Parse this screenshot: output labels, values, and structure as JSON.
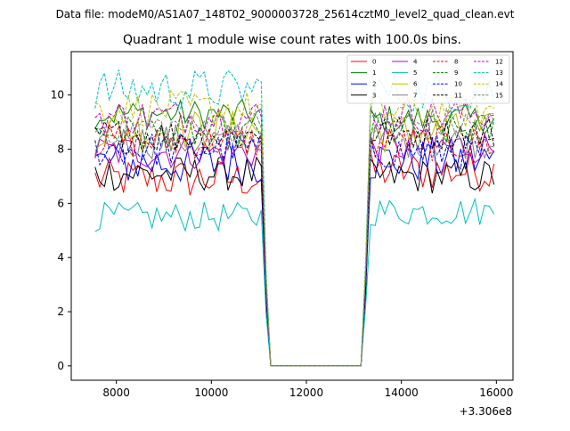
{
  "suptitle": "Data file: modeM0/AS1A07_148T02_9000003728_25614cztM0_level2_quad_clean.evt",
  "chart_data": {
    "type": "line",
    "title": "Quadrant 1 module wise count rates with 100.0s bins.",
    "xlabel": "",
    "ylabel": "",
    "x_offset_label": "+3.306e8",
    "xlim": [
      7050,
      16350
    ],
    "ylim": [
      -0.53,
      11.6
    ],
    "x_ticks": [
      8000,
      10000,
      12000,
      14000,
      16000
    ],
    "x_tick_labels": [
      "8000",
      "10000",
      "12000",
      "14000",
      "16000"
    ],
    "y_ticks": [
      0,
      2,
      4,
      6,
      8,
      10
    ],
    "y_tick_labels": [
      "0",
      "2",
      "4",
      "6",
      "8",
      "10"
    ],
    "grid": false,
    "legend_position": "top-right",
    "series": [
      {
        "name": "0",
        "color": "#ff0000",
        "dash": "solid",
        "pre": 6.9,
        "post": 7.2,
        "amp": 0.35
      },
      {
        "name": "1",
        "color": "#008000",
        "dash": "solid",
        "pre": 9.3,
        "post": 9.1,
        "amp": 0.25
      },
      {
        "name": "2",
        "color": "#0000ff",
        "dash": "solid",
        "pre": 7.5,
        "post": 7.6,
        "amp": 0.4
      },
      {
        "name": "3",
        "color": "#000000",
        "dash": "solid",
        "pre": 7.1,
        "post": 7.0,
        "amp": 0.3
      },
      {
        "name": "4",
        "color": "#bf00bf",
        "dash": "solid",
        "pre": 7.9,
        "post": 8.1,
        "amp": 0.3
      },
      {
        "name": "5",
        "color": "#00bfbf",
        "dash": "solid",
        "pre": 5.5,
        "post": 5.7,
        "amp": 0.25
      },
      {
        "name": "6",
        "color": "#bfbf00",
        "dash": "solid",
        "pre": 8.7,
        "post": 8.6,
        "amp": 0.35
      },
      {
        "name": "7",
        "color": "#808080",
        "dash": "solid",
        "pre": 8.3,
        "post": 8.3,
        "amp": 0.3
      },
      {
        "name": "8",
        "color": "#ff0000",
        "dash": "dashed",
        "pre": 8.3,
        "post": 8.2,
        "amp": 0.3
      },
      {
        "name": "9",
        "color": "#008000",
        "dash": "dashed",
        "pre": 8.6,
        "post": 8.7,
        "amp": 0.3
      },
      {
        "name": "10",
        "color": "#0000ff",
        "dash": "dashed",
        "pre": 8.0,
        "post": 7.9,
        "amp": 0.3
      },
      {
        "name": "11",
        "color": "#000000",
        "dash": "dashed",
        "pre": 8.5,
        "post": 8.6,
        "amp": 0.3
      },
      {
        "name": "12",
        "color": "#bf00bf",
        "dash": "dashed",
        "pre": 9.2,
        "post": 9.3,
        "amp": 0.3
      },
      {
        "name": "13",
        "color": "#00bfbf",
        "dash": "dashed",
        "pre": 10.2,
        "post": 10.1,
        "amp": 0.35
      },
      {
        "name": "14",
        "color": "#bfbf00",
        "dash": "dashed",
        "pre": 9.5,
        "post": 9.4,
        "amp": 0.3
      },
      {
        "name": "15",
        "color": "#808080",
        "dash": "dashed",
        "pre": 8.8,
        "post": 8.9,
        "amp": 0.3
      }
    ],
    "x_start": 7550,
    "x_end": 15950,
    "bin_width": 100,
    "gap_start": 11150,
    "gap_end": 13250,
    "gap_value": 0
  }
}
